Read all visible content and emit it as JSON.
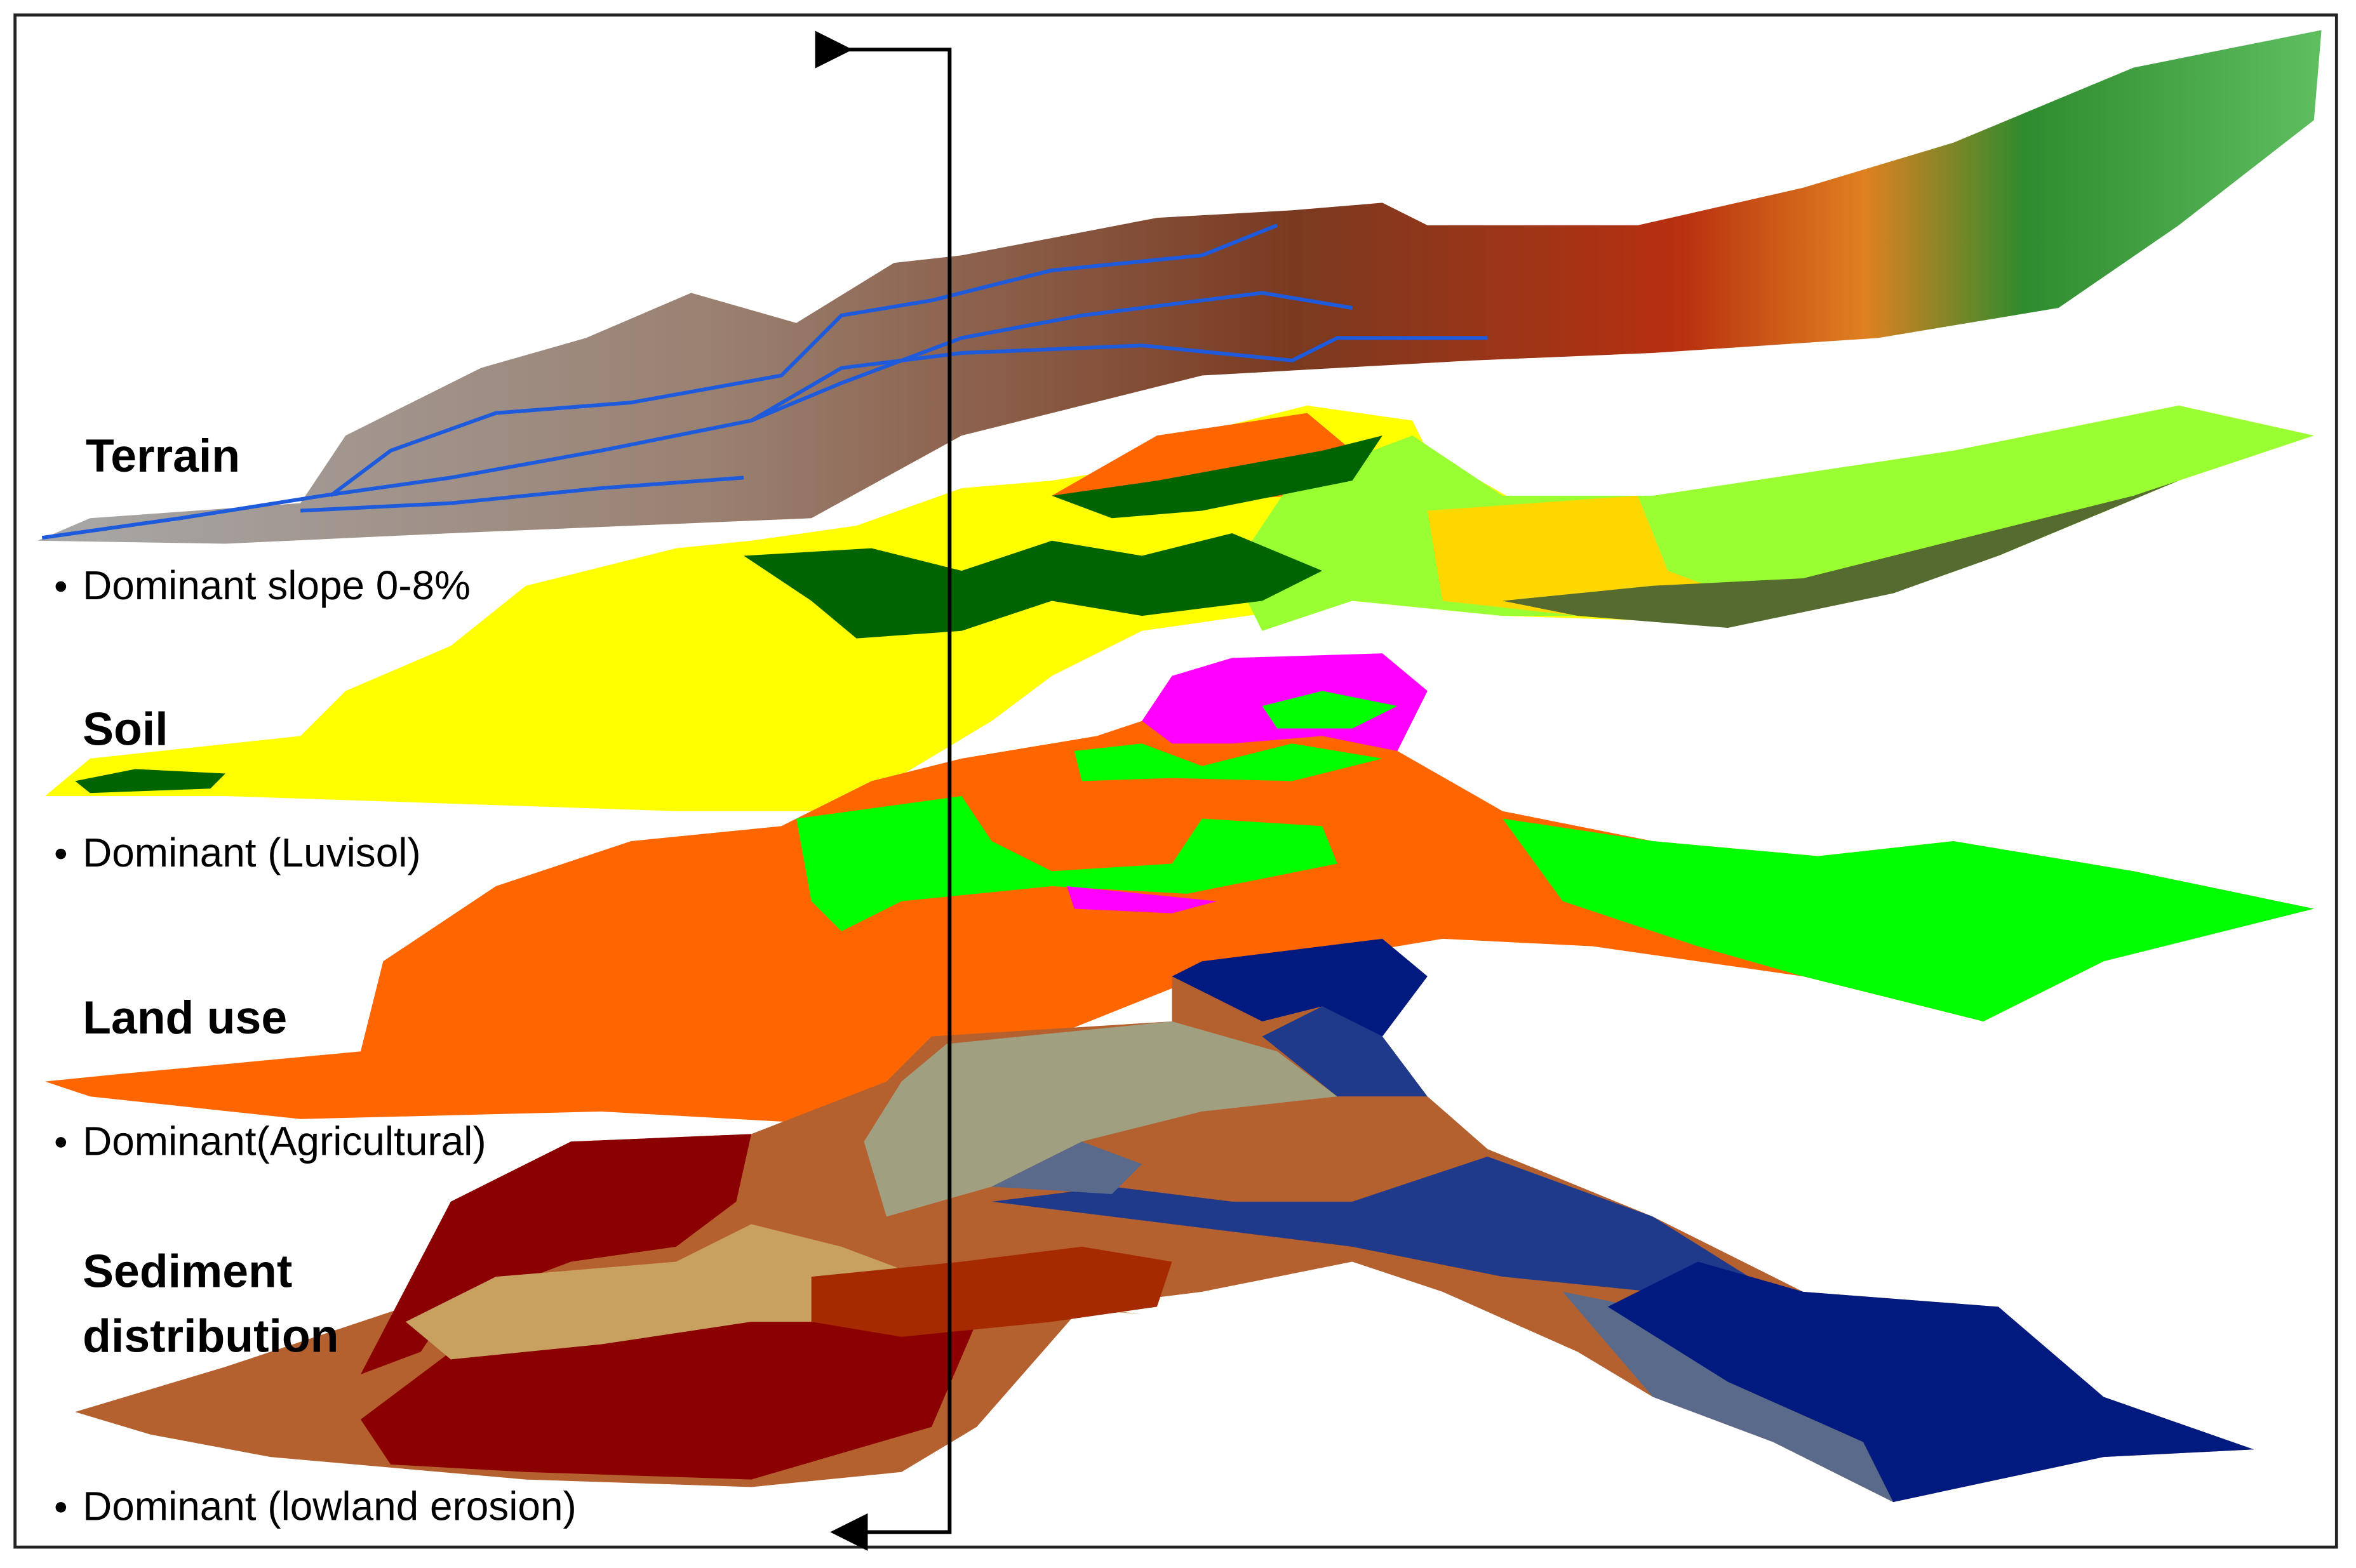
{
  "layers": [
    {
      "title": "Terrain",
      "note": "Dominant slope 0-8%"
    },
    {
      "title": "Soil",
      "note": "Dominant (Luvisol)"
    },
    {
      "title": "Land use",
      "note": "Dominant(Agricultural)"
    },
    {
      "title": "Sediment distribution",
      "note": "Dominant (lowland erosion)"
    }
  ]
}
